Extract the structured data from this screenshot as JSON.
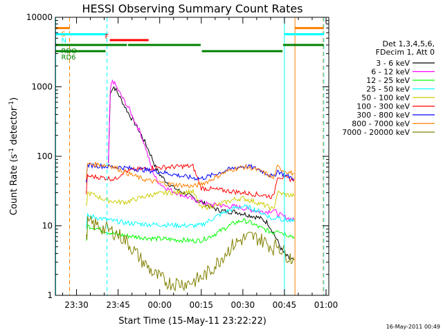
{
  "chart_data": {
    "type": "line",
    "title": "HESSI Observing Summary Count Rates",
    "xlabel": "Start Time (15-May-11 23:22:22)",
    "ylabel": "Count Rate (s-1 detector-1)",
    "ylabel_main": "Count Rate (s",
    "ylabel_sup1": "-1",
    "ylabel_mid": " detector",
    "ylabel_sup2": "-1",
    "ylabel_end": ")",
    "yscale": "log",
    "xlim": [
      22.3728,
      121.0
    ],
    "ylim": [
      1,
      10000
    ],
    "x_unit": "minutes after 23:00",
    "x_ticks": [
      {
        "value": 30,
        "label": "23:30"
      },
      {
        "value": 45,
        "label": "23:45"
      },
      {
        "value": 60,
        "label": "00:00"
      },
      {
        "value": 75,
        "label": "00:15"
      },
      {
        "value": 90,
        "label": "00:30"
      },
      {
        "value": 105,
        "label": "00:45"
      },
      {
        "value": 120,
        "label": "01:00"
      }
    ],
    "y_ticks": [
      {
        "value": 1,
        "label": "1"
      },
      {
        "value": 10,
        "label": "10"
      },
      {
        "value": 100,
        "label": "100"
      },
      {
        "value": 1000,
        "label": "1000"
      },
      {
        "value": 10000,
        "label": "10000"
      }
    ],
    "legend_header": [
      "Det 1,3,4,5,6,",
      "FDecim 1, Att 0"
    ],
    "legend_placement": "right of plot",
    "series": [
      {
        "name": "3 - 6 keV",
        "color": "#000000",
        "x": [
          41.5,
          42.2,
          43.5,
          45,
          47,
          49,
          51,
          53,
          55,
          57,
          58.5,
          60,
          62,
          64,
          67,
          70,
          73,
          75,
          78,
          81,
          84,
          87,
          90,
          93,
          96,
          99,
          101,
          103,
          104,
          105,
          106,
          107,
          108.5
        ],
        "y": [
          80,
          850,
          1000,
          800,
          560,
          400,
          300,
          215,
          150,
          100,
          70,
          55,
          45,
          38,
          32,
          28,
          24,
          22,
          19,
          17,
          16,
          16,
          15,
          14,
          13,
          11,
          8,
          5.5,
          4.5,
          4,
          3.6,
          3.3,
          3.2
        ]
      },
      {
        "name": "6 - 12 keV",
        "color": "#ff00ff",
        "x": [
          41.5,
          42.2,
          43,
          45,
          47,
          49,
          51,
          53,
          55,
          56.5,
          58,
          59,
          61,
          63,
          66,
          69,
          72,
          75,
          78,
          81,
          84,
          87,
          90,
          93,
          96,
          99,
          101,
          102.5,
          104,
          106,
          108.5
        ],
        "y": [
          80,
          900,
          1250,
          900,
          650,
          480,
          320,
          220,
          130,
          80,
          55,
          45,
          38,
          34,
          30,
          27,
          24,
          22,
          20,
          20,
          19,
          19,
          18,
          17,
          16,
          16,
          17,
          15,
          14,
          13,
          12
        ]
      },
      {
        "name": "12 - 25 keV",
        "color": "#00ff00",
        "x": [
          33.5,
          34,
          36,
          38,
          40,
          42,
          45,
          48,
          51,
          54,
          57,
          60,
          63,
          66,
          69,
          72,
          75,
          78,
          81,
          84,
          87,
          90,
          93,
          96,
          99,
          101,
          102.5,
          104,
          106,
          108.5
        ],
        "y": [
          6,
          10,
          9.5,
          9,
          8.5,
          8,
          7.5,
          7.2,
          7,
          6.8,
          6.6,
          6.5,
          6.4,
          6.3,
          6.2,
          6.1,
          6.2,
          7,
          8,
          9.5,
          11,
          12,
          11,
          9.5,
          8.5,
          8,
          9,
          8,
          7.5,
          7
        ]
      },
      {
        "name": "25 - 50 keV",
        "color": "#00ffff",
        "x": [
          33.5,
          34,
          36,
          38,
          40,
          42,
          45,
          48,
          51,
          54,
          57,
          60,
          63,
          66,
          69,
          72,
          75,
          78,
          81,
          84,
          87,
          90,
          93,
          96,
          99,
          101,
          102.5,
          104,
          106,
          108.5
        ],
        "y": [
          9,
          14,
          13.5,
          13,
          12.5,
          12,
          11.5,
          11,
          10.8,
          10.6,
          10.5,
          10.4,
          10.3,
          10.2,
          10.1,
          10,
          10.2,
          12,
          14,
          16,
          18,
          19,
          18,
          16,
          14,
          12,
          14,
          12.5,
          12,
          11.5
        ]
      },
      {
        "name": "50 - 100 keV",
        "color": "#cccc00",
        "x": [
          33.5,
          34,
          36,
          38,
          40,
          42,
          45,
          48,
          51,
          54,
          57,
          60,
          63,
          66,
          69,
          72,
          75,
          78,
          81,
          84,
          87,
          90,
          93,
          96,
          99,
          101,
          102.5,
          104,
          106,
          108.5
        ],
        "y": [
          18,
          30,
          28,
          26,
          24,
          23,
          22,
          22,
          24,
          26,
          28,
          29,
          30,
          30,
          31,
          31,
          18,
          19,
          20,
          22,
          24,
          25,
          23,
          21,
          19,
          17,
          30,
          29,
          28,
          27
        ]
      },
      {
        "name": "100 - 300 keV",
        "color": "#ff0000",
        "x": [
          33.5,
          34,
          36,
          38,
          40,
          42,
          44,
          47,
          51,
          54,
          57,
          60,
          63,
          66,
          69,
          72,
          75,
          78,
          81,
          84,
          87,
          90,
          93,
          96,
          99,
          101,
          102.5,
          104,
          106,
          108.5
        ],
        "y": [
          30,
          52,
          51,
          50,
          49,
          48,
          47,
          60,
          64,
          66,
          68,
          69,
          70,
          71,
          72,
          72,
          35,
          34,
          33,
          32,
          31,
          30,
          29,
          28,
          27,
          26,
          52,
          50,
          48,
          46
        ]
      },
      {
        "name": "300 - 800 keV",
        "color": "#0000ff",
        "x": [
          33.5,
          34,
          36,
          38,
          40,
          42,
          45,
          48,
          51,
          54,
          57,
          60,
          63,
          66,
          69,
          72,
          75,
          78,
          81,
          84,
          87,
          90,
          93,
          96,
          99,
          101,
          102.5,
          104,
          106,
          108.5
        ],
        "y": [
          45,
          75,
          74,
          73,
          72,
          71,
          70,
          68,
          66,
          64,
          62,
          60,
          57,
          54,
          51,
          49,
          48,
          52,
          57,
          63,
          68,
          72,
          70,
          64,
          56,
          50,
          62,
          57,
          52,
          48
        ]
      },
      {
        "name": "800 - 7000 keV",
        "color": "#ff8000",
        "x": [
          33.5,
          34,
          36,
          38,
          40,
          42,
          45,
          48,
          51,
          54,
          57,
          60,
          63,
          66,
          69,
          72,
          75,
          78,
          81,
          84,
          87,
          90,
          93,
          96,
          99,
          101,
          102.5,
          104,
          106,
          108.5
        ],
        "y": [
          45,
          78,
          77,
          76,
          75,
          74,
          66,
          58,
          52,
          47,
          44,
          42,
          40,
          39,
          38,
          37,
          40,
          45,
          52,
          60,
          66,
          70,
          68,
          62,
          55,
          48,
          70,
          65,
          60,
          56
        ]
      },
      {
        "name": "7000 - 20000 keV",
        "color": "#808000",
        "x": [
          33.5,
          34,
          36,
          38,
          40,
          42,
          44,
          46,
          48,
          50,
          52,
          54,
          56,
          58,
          60,
          62,
          64,
          66,
          68,
          70,
          72,
          74,
          75,
          78,
          81,
          84,
          87,
          90,
          93,
          96,
          99,
          101,
          102.5,
          104,
          106,
          108.5
        ],
        "y": [
          6,
          11,
          10.5,
          10,
          9,
          8.5,
          8,
          7,
          6,
          4.8,
          3.8,
          3,
          2.5,
          2,
          1.8,
          1.6,
          1.5,
          1.5,
          1.5,
          1.5,
          1.6,
          1.7,
          1.8,
          2.2,
          3,
          4.2,
          5.5,
          6.5,
          7,
          6.5,
          5.5,
          4.8,
          5.5,
          4.5,
          3.8,
          3.2
        ]
      }
    ],
    "vertical_markers": [
      {
        "x": 22.5,
        "color": "#00ffff",
        "style": "solid"
      },
      {
        "x": 27.5,
        "color": "#ff8000",
        "style": "dashed"
      },
      {
        "x": 41.0,
        "color": "#00ffff",
        "style": "dashed"
      },
      {
        "x": 105.0,
        "color": "#00ffff",
        "style": "solid"
      },
      {
        "x": 108.8,
        "color": "#ff8000",
        "style": "solid"
      },
      {
        "x": 119.0,
        "color": "#ff8000",
        "style": "dashed"
      },
      {
        "x": 119.2,
        "color": "#00ffff",
        "style": "dashed"
      }
    ],
    "flag_bars": [
      {
        "label": "S",
        "color": "#ff8000",
        "x0": 22.5,
        "x1": 27.5,
        "y": 7000
      },
      {
        "label": "",
        "color": "#ff8000",
        "x0": 108.8,
        "x1": 119.2,
        "y": 7000
      },
      {
        "label": "N",
        "color": "#00ffff",
        "x0": 22.5,
        "x1": 41.0,
        "y": 5700
      },
      {
        "label": "",
        "color": "#00ffff",
        "x0": 105.0,
        "x1": 119.2,
        "y": 5700
      },
      {
        "label": "F",
        "color": "#ff0000",
        "x0": 42.0,
        "x1": 56.0,
        "y": 4700
      },
      {
        "label": "RDO",
        "color": "#008000",
        "x0": 22.5,
        "x1": 48.2,
        "y": 4000
      },
      {
        "label": "",
        "color": "#008000",
        "x0": 48.6,
        "x1": 74.8,
        "y": 4000
      },
      {
        "label": "",
        "color": "#008000",
        "x0": 104.5,
        "x1": 119.2,
        "y": 4000
      },
      {
        "label": "RD6",
        "color": "#008000",
        "x0": 22.5,
        "x1": 40.5,
        "y": 3250
      },
      {
        "label": "",
        "color": "#008000",
        "x0": 75.2,
        "x1": 104.3,
        "y": 3250
      }
    ]
  },
  "legend": {
    "header_line1": "Det 1,3,4,5,6,",
    "header_line2": "FDecim 1, Att 0"
  },
  "timestamp": "16-May-2011 00:49"
}
